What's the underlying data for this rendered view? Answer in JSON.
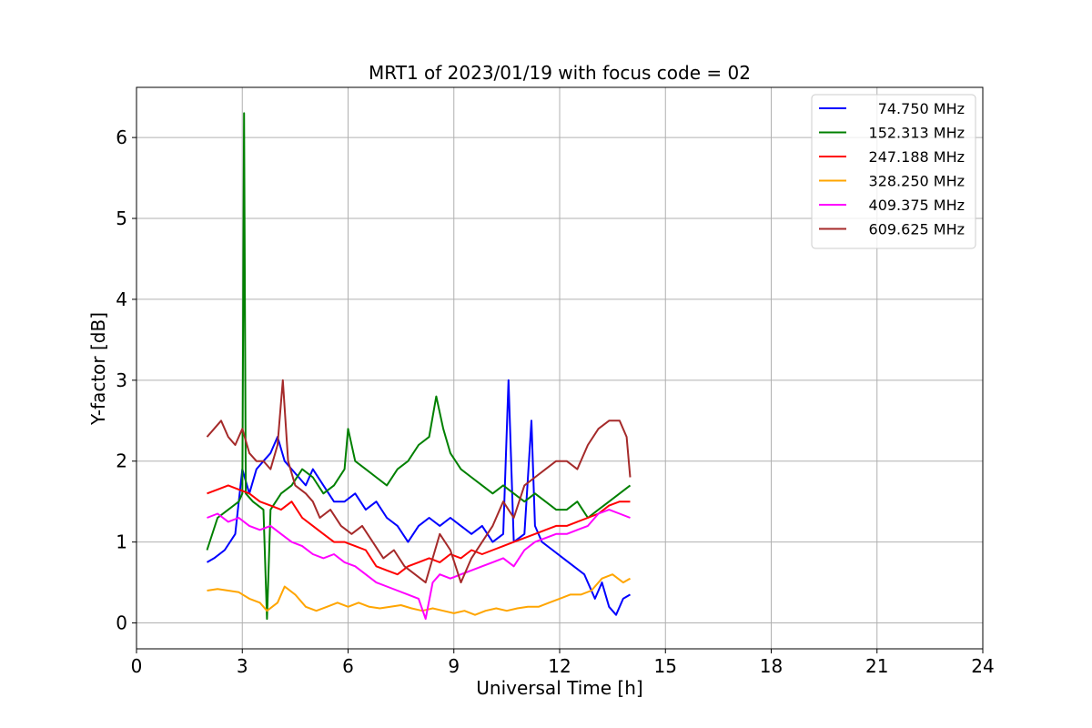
{
  "chart_data": {
    "type": "line",
    "title": "MRT1 of 2023/01/19 with focus code = 02",
    "xlabel": "Universal Time [h]",
    "ylabel": "Y-factor [dB]",
    "xlim": [
      0,
      24
    ],
    "ylim": [
      -0.32,
      6.62
    ],
    "xticks": [
      "0",
      "3",
      "6",
      "9",
      "12",
      "15",
      "18",
      "21",
      "24"
    ],
    "yticks": [
      "0",
      "1",
      "2",
      "3",
      "4",
      "5",
      "6"
    ],
    "grid": true,
    "legend_position": "top-right",
    "series": [
      {
        "name": "74.750 MHz",
        "color": "#0000ff",
        "x": [
          2.0,
          2.2,
          2.5,
          2.8,
          3.0,
          3.2,
          3.4,
          3.6,
          3.8,
          4.0,
          4.2,
          4.4,
          4.6,
          4.8,
          5.0,
          5.3,
          5.6,
          5.9,
          6.2,
          6.5,
          6.8,
          7.1,
          7.4,
          7.7,
          8.0,
          8.3,
          8.6,
          8.9,
          9.2,
          9.5,
          9.8,
          10.1,
          10.4,
          10.55,
          10.7,
          11.0,
          11.2,
          11.3,
          11.5,
          11.8,
          12.1,
          12.4,
          12.7,
          13.0,
          13.2,
          13.4,
          13.6,
          13.8,
          14.0
        ],
        "y": [
          0.75,
          0.8,
          0.9,
          1.1,
          1.9,
          1.6,
          1.9,
          2.0,
          2.1,
          2.3,
          2.0,
          1.9,
          1.8,
          1.7,
          1.9,
          1.7,
          1.5,
          1.5,
          1.6,
          1.4,
          1.5,
          1.3,
          1.2,
          1.0,
          1.2,
          1.3,
          1.2,
          1.3,
          1.2,
          1.1,
          1.2,
          1.0,
          1.1,
          3.0,
          1.0,
          1.1,
          2.5,
          1.2,
          1.0,
          0.9,
          0.8,
          0.7,
          0.6,
          0.3,
          0.5,
          0.2,
          0.1,
          0.3,
          0.35
        ]
      },
      {
        "name": "152.313 MHz",
        "color": "#008000",
        "x": [
          2.0,
          2.3,
          2.6,
          2.9,
          3.0,
          3.05,
          3.1,
          3.3,
          3.6,
          3.7,
          3.8,
          4.1,
          4.4,
          4.7,
          5.0,
          5.3,
          5.6,
          5.9,
          6.0,
          6.2,
          6.5,
          6.8,
          7.1,
          7.4,
          7.7,
          8.0,
          8.3,
          8.5,
          8.7,
          8.9,
          9.2,
          9.5,
          9.8,
          10.1,
          10.4,
          10.7,
          11.0,
          11.3,
          11.6,
          11.9,
          12.2,
          12.5,
          12.8,
          13.1,
          13.4,
          13.7,
          14.0
        ],
        "y": [
          0.9,
          1.3,
          1.4,
          1.5,
          1.6,
          6.3,
          1.6,
          1.5,
          1.4,
          0.05,
          1.4,
          1.6,
          1.7,
          1.9,
          1.8,
          1.6,
          1.7,
          1.9,
          2.4,
          2.0,
          1.9,
          1.8,
          1.7,
          1.9,
          2.0,
          2.2,
          2.3,
          2.8,
          2.4,
          2.1,
          1.9,
          1.8,
          1.7,
          1.6,
          1.7,
          1.6,
          1.5,
          1.6,
          1.5,
          1.4,
          1.4,
          1.5,
          1.3,
          1.4,
          1.5,
          1.6,
          1.7
        ]
      },
      {
        "name": "247.188 MHz",
        "color": "#ff0000",
        "x": [
          2.0,
          2.3,
          2.6,
          2.9,
          3.2,
          3.5,
          3.8,
          4.1,
          4.4,
          4.7,
          5.0,
          5.3,
          5.6,
          5.9,
          6.2,
          6.5,
          6.8,
          7.1,
          7.4,
          7.7,
          8.0,
          8.3,
          8.6,
          8.9,
          9.2,
          9.5,
          9.8,
          10.1,
          10.4,
          10.7,
          11.0,
          11.3,
          11.6,
          11.9,
          12.2,
          12.5,
          12.8,
          13.1,
          13.4,
          13.7,
          14.0
        ],
        "y": [
          1.6,
          1.65,
          1.7,
          1.65,
          1.6,
          1.5,
          1.45,
          1.4,
          1.5,
          1.3,
          1.2,
          1.1,
          1.0,
          1.0,
          0.95,
          0.9,
          0.7,
          0.65,
          0.6,
          0.7,
          0.75,
          0.8,
          0.75,
          0.85,
          0.8,
          0.9,
          0.85,
          0.9,
          0.95,
          1.0,
          1.05,
          1.1,
          1.15,
          1.2,
          1.2,
          1.25,
          1.3,
          1.35,
          1.45,
          1.5,
          1.5
        ]
      },
      {
        "name": "328.250 MHz",
        "color": "#ffa500",
        "x": [
          2.0,
          2.3,
          2.6,
          2.9,
          3.2,
          3.5,
          3.7,
          4.0,
          4.2,
          4.5,
          4.8,
          5.1,
          5.4,
          5.7,
          6.0,
          6.3,
          6.6,
          6.9,
          7.2,
          7.5,
          7.8,
          8.1,
          8.4,
          8.7,
          9.0,
          9.3,
          9.6,
          9.9,
          10.2,
          10.5,
          10.8,
          11.1,
          11.4,
          11.7,
          12.0,
          12.3,
          12.6,
          12.9,
          13.2,
          13.5,
          13.8,
          14.0
        ],
        "y": [
          0.4,
          0.42,
          0.4,
          0.38,
          0.3,
          0.25,
          0.15,
          0.25,
          0.45,
          0.35,
          0.2,
          0.15,
          0.2,
          0.25,
          0.2,
          0.25,
          0.2,
          0.18,
          0.2,
          0.22,
          0.18,
          0.15,
          0.18,
          0.15,
          0.12,
          0.15,
          0.1,
          0.15,
          0.18,
          0.15,
          0.18,
          0.2,
          0.2,
          0.25,
          0.3,
          0.35,
          0.35,
          0.4,
          0.55,
          0.6,
          0.5,
          0.55
        ]
      },
      {
        "name": "409.375 MHz",
        "color": "#ff00ff",
        "x": [
          2.0,
          2.3,
          2.6,
          2.9,
          3.2,
          3.5,
          3.8,
          4.1,
          4.4,
          4.7,
          5.0,
          5.3,
          5.6,
          5.9,
          6.2,
          6.5,
          6.8,
          7.1,
          7.4,
          7.7,
          8.0,
          8.2,
          8.4,
          8.6,
          8.9,
          9.2,
          9.5,
          9.8,
          10.1,
          10.4,
          10.7,
          11.0,
          11.3,
          11.6,
          11.9,
          12.2,
          12.5,
          12.8,
          13.1,
          13.4,
          13.7,
          14.0
        ],
        "y": [
          1.3,
          1.35,
          1.25,
          1.3,
          1.2,
          1.15,
          1.2,
          1.1,
          1.0,
          0.95,
          0.85,
          0.8,
          0.85,
          0.75,
          0.7,
          0.6,
          0.5,
          0.45,
          0.4,
          0.35,
          0.3,
          0.05,
          0.5,
          0.6,
          0.55,
          0.6,
          0.65,
          0.7,
          0.75,
          0.8,
          0.7,
          0.9,
          1.0,
          1.05,
          1.1,
          1.1,
          1.15,
          1.2,
          1.35,
          1.4,
          1.35,
          1.3
        ]
      },
      {
        "name": "609.625 MHz",
        "color": "#a52a2a",
        "x": [
          2.0,
          2.2,
          2.4,
          2.6,
          2.8,
          3.0,
          3.2,
          3.4,
          3.6,
          3.8,
          4.0,
          4.15,
          4.3,
          4.5,
          4.8,
          5.0,
          5.2,
          5.5,
          5.8,
          6.1,
          6.4,
          6.7,
          7.0,
          7.3,
          7.6,
          7.9,
          8.2,
          8.4,
          8.6,
          8.9,
          9.2,
          9.5,
          9.8,
          10.1,
          10.4,
          10.7,
          11.0,
          11.3,
          11.6,
          11.9,
          12.2,
          12.5,
          12.8,
          13.1,
          13.4,
          13.7,
          13.9,
          14.0
        ],
        "y": [
          2.3,
          2.4,
          2.5,
          2.3,
          2.2,
          2.4,
          2.1,
          2.0,
          2.0,
          1.9,
          2.2,
          3.0,
          2.0,
          1.7,
          1.6,
          1.5,
          1.3,
          1.4,
          1.2,
          1.1,
          1.2,
          1.0,
          0.8,
          0.9,
          0.7,
          0.6,
          0.5,
          0.8,
          1.1,
          0.9,
          0.5,
          0.8,
          1.0,
          1.2,
          1.5,
          1.3,
          1.7,
          1.8,
          1.9,
          2.0,
          2.0,
          1.9,
          2.2,
          2.4,
          2.5,
          2.5,
          2.3,
          1.8
        ]
      }
    ]
  }
}
